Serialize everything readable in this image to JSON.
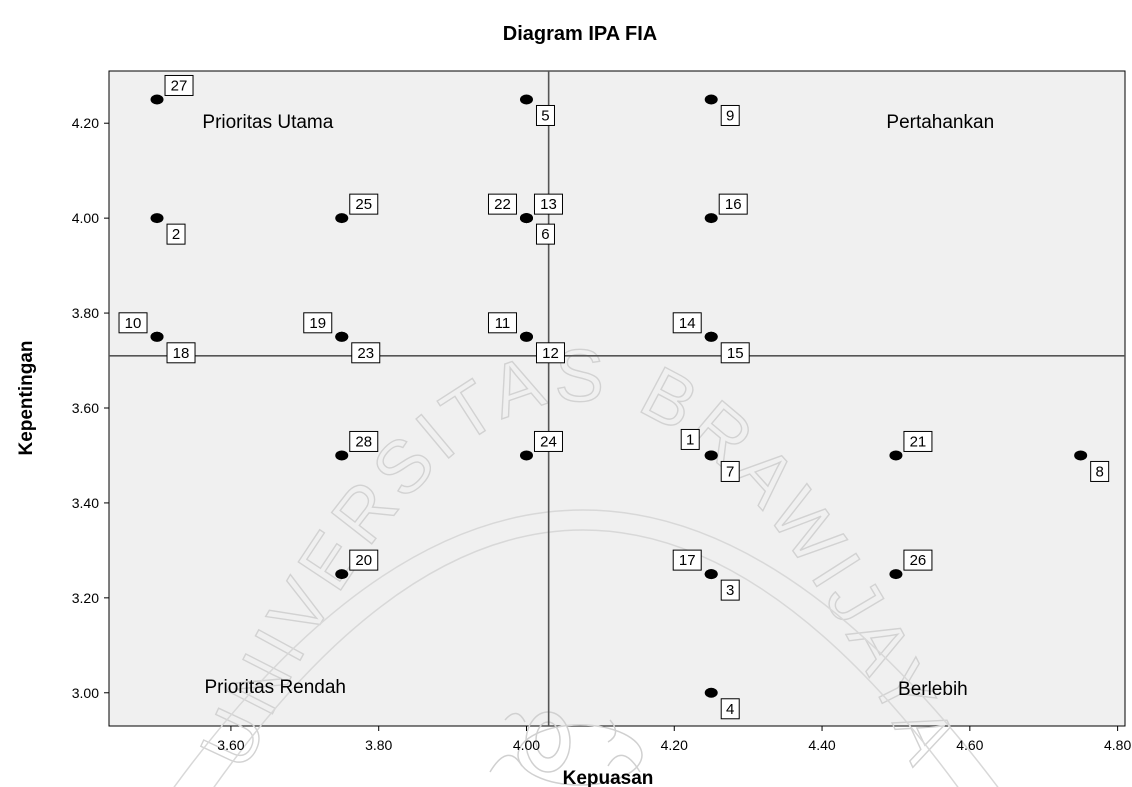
{
  "chart_data": {
    "type": "scatter",
    "title": "Diagram IPA FIA",
    "xlabel": "Kepuasan",
    "ylabel": "Kepentingan",
    "xlim": [
      3.435,
      4.81
    ],
    "ylim": [
      2.93,
      4.31
    ],
    "x_ticks": [
      "3.60",
      "3.80",
      "4.00",
      "4.20",
      "4.40",
      "4.60",
      "4.80"
    ],
    "y_ticks": [
      "3.00",
      "3.20",
      "3.40",
      "3.60",
      "3.80",
      "4.00",
      "4.20"
    ],
    "reference_lines": {
      "x": 4.03,
      "y": 3.71
    },
    "quadrants": [
      "Prioritas Utama",
      "Pertahankan",
      "Prioritas Rendah",
      "Berlebih"
    ],
    "grid": false,
    "points": [
      {
        "label": "1",
        "x": 4.25,
        "y": 3.5
      },
      {
        "label": "2",
        "x": 3.5,
        "y": 4.0
      },
      {
        "label": "3",
        "x": 4.25,
        "y": 3.25
      },
      {
        "label": "4",
        "x": 4.25,
        "y": 3.0
      },
      {
        "label": "5",
        "x": 4.0,
        "y": 4.25
      },
      {
        "label": "6",
        "x": 4.0,
        "y": 4.0
      },
      {
        "label": "7",
        "x": 4.25,
        "y": 3.5
      },
      {
        "label": "8",
        "x": 4.75,
        "y": 3.5
      },
      {
        "label": "9",
        "x": 4.25,
        "y": 4.25
      },
      {
        "label": "10",
        "x": 3.5,
        "y": 3.75
      },
      {
        "label": "11",
        "x": 4.0,
        "y": 3.75
      },
      {
        "label": "12",
        "x": 4.0,
        "y": 3.75
      },
      {
        "label": "13",
        "x": 4.0,
        "y": 4.0
      },
      {
        "label": "14",
        "x": 4.25,
        "y": 3.75
      },
      {
        "label": "15",
        "x": 4.25,
        "y": 3.75
      },
      {
        "label": "16",
        "x": 4.25,
        "y": 4.0
      },
      {
        "label": "17",
        "x": 4.25,
        "y": 3.25
      },
      {
        "label": "18",
        "x": 3.5,
        "y": 3.75
      },
      {
        "label": "19",
        "x": 3.75,
        "y": 3.75
      },
      {
        "label": "20",
        "x": 3.75,
        "y": 3.25
      },
      {
        "label": "21",
        "x": 4.5,
        "y": 3.5
      },
      {
        "label": "22",
        "x": 4.0,
        "y": 4.0
      },
      {
        "label": "23",
        "x": 3.75,
        "y": 3.75
      },
      {
        "label": "24",
        "x": 4.0,
        "y": 3.5
      },
      {
        "label": "25",
        "x": 3.75,
        "y": 4.0
      },
      {
        "label": "26",
        "x": 4.5,
        "y": 3.25
      },
      {
        "label": "27",
        "x": 3.5,
        "y": 4.25
      },
      {
        "label": "28",
        "x": 3.75,
        "y": 3.5
      }
    ]
  },
  "watermark": {
    "text": "UNIVERSITAS BRAWIJAYA"
  },
  "colors": {
    "plot_bg": "#f0f0f0",
    "marker": "#000000",
    "watermark": "#d2d2d2"
  }
}
